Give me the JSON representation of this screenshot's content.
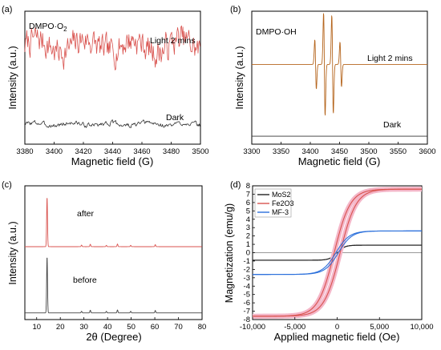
{
  "chart_data": [
    {
      "panel_label": "(a)",
      "type": "line",
      "annotation": "DMPO·O",
      "annotation_sub": "2",
      "xlabel": "Magnetic field (G)",
      "ylabel": "Intensity (a.u.)",
      "xlim": [
        3380,
        3500
      ],
      "xticks": [
        3380,
        3400,
        3420,
        3440,
        3460,
        3480,
        3500
      ],
      "ylim": [
        0,
        1
      ],
      "series": [
        {
          "name": "Light 2 mins",
          "color": "#d9534f",
          "baseline": 0.74,
          "noise_amp": 0.11,
          "seed": 7
        },
        {
          "name": "Dark",
          "color": "#333333",
          "baseline": 0.15,
          "noise_amp": 0.018,
          "seed": 3
        }
      ]
    },
    {
      "panel_label": "(b)",
      "type": "line",
      "annotation": "DMPO·OH",
      "xlabel": "Magnetic field (G)",
      "ylabel": "Intensity (a.u.)",
      "xlim": [
        3300,
        3600
      ],
      "xticks": [
        3300,
        3350,
        3400,
        3450,
        3500,
        3550,
        3600
      ],
      "ylim": [
        0,
        1
      ],
      "series": [
        {
          "name": "Light 2 mins",
          "color": "#b5651d",
          "baseline": 0.6,
          "peaks": [
            {
              "x": 3409,
              "amp": 0.22
            },
            {
              "x": 3424,
              "amp": 0.46
            },
            {
              "x": 3438,
              "amp": 0.44
            },
            {
              "x": 3452,
              "amp": 0.2
            }
          ]
        },
        {
          "name": "Dark",
          "color": "#333333",
          "baseline": 0.06
        }
      ]
    },
    {
      "panel_label": "(c)",
      "type": "line",
      "xlabel": "2θ (Degree)",
      "ylabel": "Intensity (a.u.)",
      "xlim": [
        5,
        80
      ],
      "xticks": [
        10,
        20,
        30,
        40,
        50,
        60,
        70,
        80
      ],
      "ylim": [
        0,
        1
      ],
      "series": [
        {
          "name": "after",
          "color": "#d9534f",
          "baseline": 0.545,
          "peaks": [
            {
              "x": 14.4,
              "h": 0.37
            },
            {
              "x": 29.0,
              "h": 0.012
            },
            {
              "x": 32.7,
              "h": 0.018
            },
            {
              "x": 39.5,
              "h": 0.01
            },
            {
              "x": 44.2,
              "h": 0.02
            },
            {
              "x": 49.8,
              "h": 0.01
            },
            {
              "x": 60.2,
              "h": 0.015
            }
          ]
        },
        {
          "name": "before",
          "color": "#444444",
          "baseline": 0.05,
          "peaks": [
            {
              "x": 14.4,
              "h": 0.42
            },
            {
              "x": 29.0,
              "h": 0.012
            },
            {
              "x": 32.7,
              "h": 0.02
            },
            {
              "x": 39.5,
              "h": 0.012
            },
            {
              "x": 44.2,
              "h": 0.022
            },
            {
              "x": 49.8,
              "h": 0.012
            },
            {
              "x": 60.2,
              "h": 0.018
            }
          ]
        }
      ]
    },
    {
      "panel_label": "(d)",
      "type": "line",
      "xlabel": "Applied magnetic field (Oe)",
      "ylabel": "Magnetization (emu/g)",
      "xlim": [
        -10000,
        10000
      ],
      "xticks": [
        -10000,
        -5000,
        0,
        5000,
        10000
      ],
      "xticklabels": [
        "-10,000",
        "-5,000",
        "0",
        "5,000",
        "10,000"
      ],
      "ylim": [
        -8,
        8
      ],
      "yticks": [
        -8,
        -7,
        -6,
        -5,
        -4,
        -3,
        -2,
        -1,
        0,
        1,
        2,
        3,
        4,
        5,
        6,
        7,
        8
      ],
      "legend": "top-left",
      "series": [
        {
          "name": "MoS2",
          "color": "#222222",
          "ms": 0.9,
          "scale": 900
        },
        {
          "name": "Fe2O3",
          "color": "#d9534f",
          "ms": 7.6,
          "scale": 1900,
          "hysteresis": 350
        },
        {
          "name": "MF-3",
          "color": "#2a6fdb",
          "ms": 2.6,
          "scale": 1600,
          "hysteresis": 150
        }
      ]
    }
  ]
}
